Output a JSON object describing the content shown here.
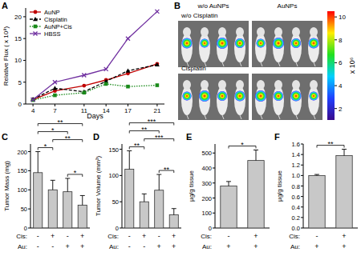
{
  "chart_data": [
    {
      "type": "line",
      "title": "A",
      "x_label": "Days",
      "y_label": "Relative Flux ( x 10⁸)",
      "x": [
        4,
        7,
        11,
        14,
        17,
        21
      ],
      "xlim": [
        3,
        22
      ],
      "xticks": [
        4,
        7,
        11,
        14,
        17,
        21
      ],
      "ylim": [
        0,
        22
      ],
      "yticks": [
        0,
        5,
        10,
        15,
        20
      ],
      "legend": "top-left",
      "series": [
        {
          "name": "AuNP",
          "color": "#c00000",
          "marker": "circle",
          "line_style": "solid",
          "values": [
            1.0,
            3.0,
            4.2,
            5.5,
            7.0,
            9.2
          ]
        },
        {
          "name": "Cisplatin",
          "color": "#000000",
          "marker": "triangle",
          "line_style": "dashed",
          "values": [
            1.1,
            3.6,
            2.8,
            5.2,
            7.6,
            9.0
          ]
        },
        {
          "name": "AuNP+Cis",
          "color": "#1a8a1a",
          "marker": "square",
          "line_style": "dotted",
          "values": [
            0.9,
            2.0,
            2.6,
            4.6,
            4.0,
            4.3
          ]
        },
        {
          "name": "HBSS",
          "color": "#7030a0",
          "marker": "x",
          "line_style": "solid",
          "values": [
            1.0,
            5.0,
            6.6,
            8.0,
            15.0,
            21.2
          ]
        }
      ]
    },
    {
      "type": "image",
      "title": "B",
      "column_labels": [
        "w/o AuNPs",
        "AuNPs"
      ],
      "row_labels": [
        "w/o Cisplatin",
        "Cisplatin"
      ],
      "colorbar": {
        "range": [
          1,
          10.5
        ],
        "ticks": [
          2,
          4,
          6,
          8,
          10
        ],
        "label": "x 10⁶"
      }
    },
    {
      "type": "bar",
      "title": "C",
      "y_label": "Tumor Mass (mg)",
      "category_rows": [
        {
          "label": "Cis:",
          "values": [
            "-",
            "+",
            "-",
            "+"
          ]
        },
        {
          "label": "Au:",
          "values": [
            "-",
            "-",
            "+",
            "+"
          ]
        }
      ],
      "values": [
        145,
        100,
        95,
        60
      ],
      "errors": [
        55,
        25,
        35,
        25
      ],
      "color": "#c8c8c8",
      "ylim": [
        0,
        220
      ],
      "yticks": [
        0,
        50,
        100,
        150,
        200
      ],
      "significance": [
        {
          "from": 0,
          "to": 1,
          "label": "*"
        },
        {
          "from": 2,
          "to": 3,
          "label": "*"
        },
        {
          "from": 1,
          "to": 3,
          "label": "**"
        },
        {
          "from": 0,
          "to": 2,
          "label": "*"
        },
        {
          "from": 0,
          "to": 3,
          "label": "**"
        }
      ]
    },
    {
      "type": "bar",
      "title": "D",
      "y_label": "Tumor Volume (mm³)",
      "category_rows": [
        {
          "label": "Cis:",
          "values": [
            "-",
            "+",
            "-",
            "+"
          ]
        },
        {
          "label": "Au:",
          "values": [
            "-",
            "-",
            "+",
            "+"
          ]
        }
      ],
      "values": [
        112,
        50,
        72,
        25
      ],
      "errors": [
        35,
        15,
        30,
        12
      ],
      "color": "#c8c8c8",
      "ylim": [
        0,
        160
      ],
      "yticks": [
        0,
        50,
        100,
        150
      ],
      "significance": [
        {
          "from": 0,
          "to": 1,
          "label": "**"
        },
        {
          "from": 2,
          "to": 3,
          "label": "**"
        },
        {
          "from": 1,
          "to": 3,
          "label": "***"
        },
        {
          "from": 0,
          "to": 2,
          "label": "**"
        },
        {
          "from": 0,
          "to": 3,
          "label": "***"
        }
      ]
    },
    {
      "type": "bar",
      "title": "E",
      "y_label": "µg/g tissue",
      "category_rows": [
        {
          "label": "Cis:",
          "values": [
            "-",
            "+"
          ]
        },
        {
          "label": "Au:",
          "values": [
            "+",
            "+"
          ]
        }
      ],
      "values": [
        280,
        450
      ],
      "errors": [
        30,
        70
      ],
      "color": "#c8c8c8",
      "ylim": [
        0,
        560
      ],
      "yticks": [
        0,
        100,
        200,
        300,
        400,
        500
      ],
      "significance": [
        {
          "from": 0,
          "to": 1,
          "label": "*"
        }
      ]
    },
    {
      "type": "bar",
      "title": "F",
      "y_label": "µg/g tissue",
      "category_rows": [
        {
          "label": "Cis:",
          "values": [
            "-",
            "+"
          ]
        },
        {
          "label": "Au:",
          "values": [
            "+",
            "+"
          ]
        }
      ],
      "values": [
        1.0,
        1.38
      ],
      "errors": [
        0.02,
        0.12
      ],
      "color": "#c8c8c8",
      "ylim": [
        0,
        1.6
      ],
      "yticks": [
        {
          "value": 0,
          "label": "0.0"
        },
        0.2,
        0.4,
        0.6,
        0.8,
        {
          "value": 1,
          "label": "1.0"
        },
        1.2,
        1.4,
        1.6
      ],
      "significance": [
        {
          "from": 0,
          "to": 1,
          "label": "**"
        }
      ]
    }
  ]
}
